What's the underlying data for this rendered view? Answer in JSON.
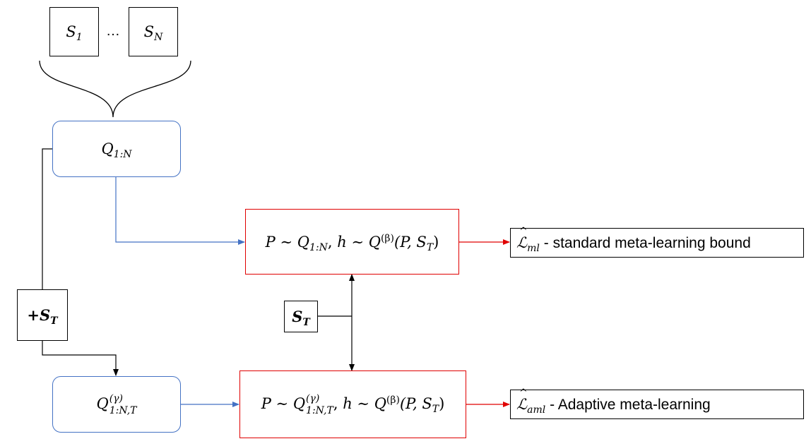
{
  "inputs": {
    "s1": {
      "base": "S",
      "sub": "1"
    },
    "ellipsis": "…",
    "sn": {
      "base": "S",
      "sub": "N"
    }
  },
  "q1n": {
    "base": "Q",
    "sub": "1:N"
  },
  "qgamma": {
    "base": "Q",
    "sup": "(γ)",
    "sub": "1:N,T"
  },
  "plus_st": {
    "prefix": "+",
    "base": "S",
    "sub": "T"
  },
  "st": {
    "base": "S",
    "sub": "T"
  },
  "standard_box": {
    "p": "P",
    "sim": "∼",
    "q": "Q",
    "q_sub": "1:N",
    "comma": ",",
    "h": "h",
    "sim2": "∼",
    "q2": "Q",
    "q2_sup": "(β)",
    "args": "(P, S",
    "args_sub": "T",
    "close": ")"
  },
  "adaptive_box": {
    "p": "P",
    "sim": "∼",
    "q": "Q",
    "q_sup": "(γ)",
    "q_sub": "1:N,T",
    "comma": ",",
    "h": "h",
    "sim2": "∼",
    "q2": "Q",
    "q2_sup": "(β)",
    "args": "(P, S",
    "args_sub": "T",
    "close": ")"
  },
  "bound_standard": {
    "symbol": "ℒ",
    "sub": "ml",
    "dash": " - ",
    "text": "standard meta-learning bound"
  },
  "bound_adaptive": {
    "symbol": "ℒ",
    "sub": "aml",
    "dash": " - ",
    "text": "Adaptive meta-learning"
  },
  "colors": {
    "blue": "#4472c4",
    "red": "#e00000",
    "black": "#000000"
  }
}
